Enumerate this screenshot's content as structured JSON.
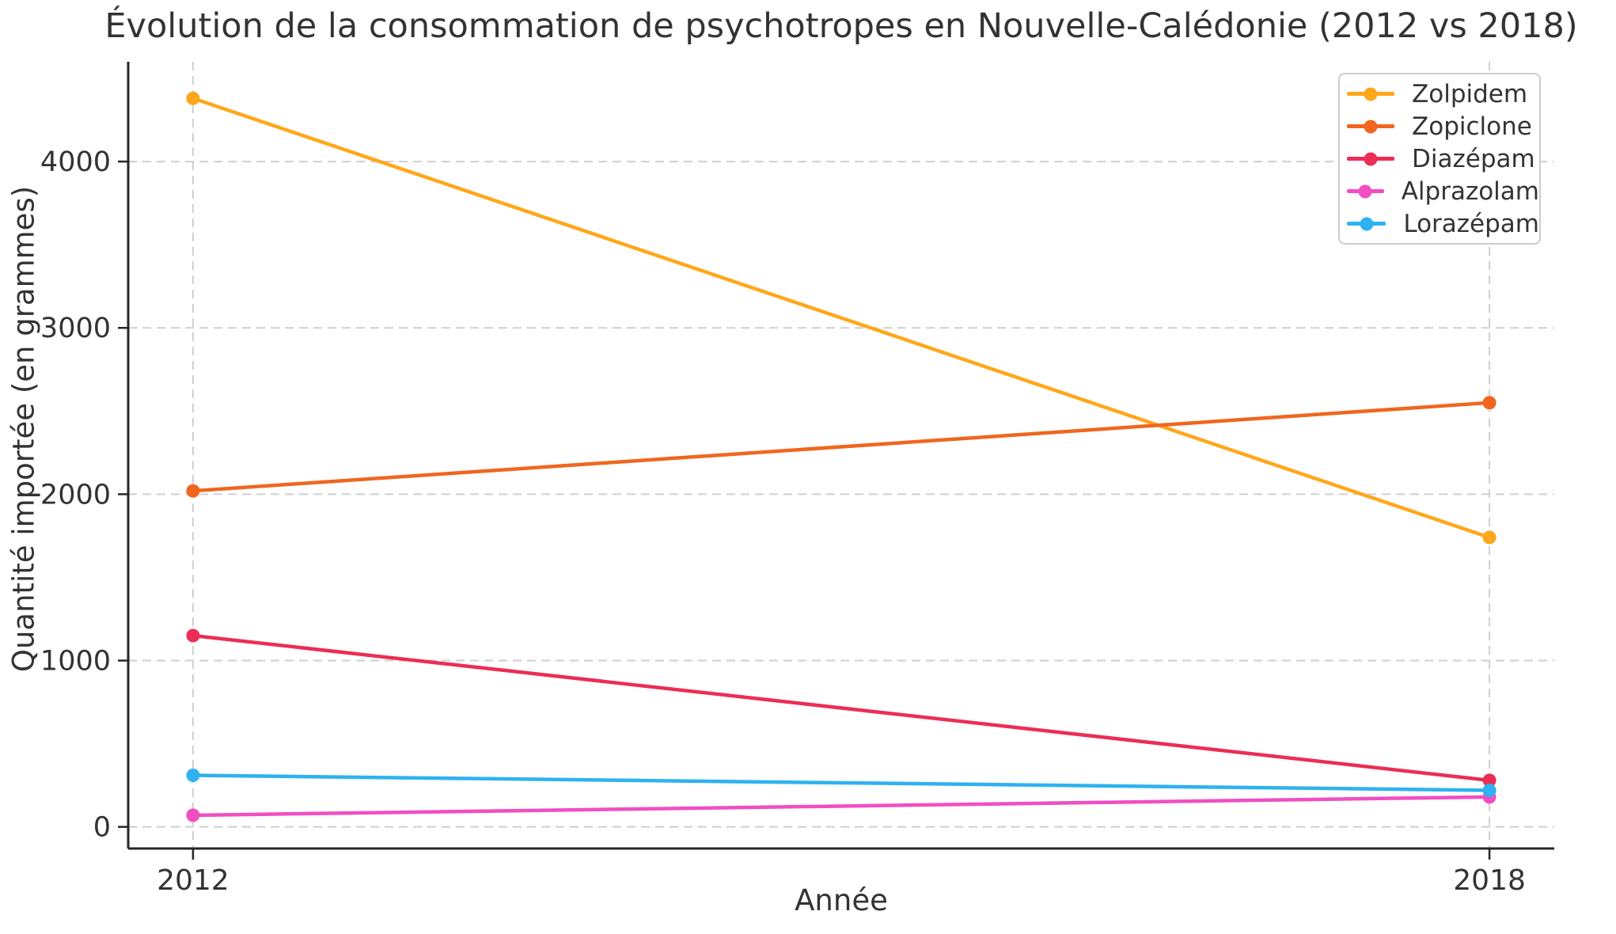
{
  "chart_data": {
    "type": "line",
    "title": "Évolution de la consommation de psychotropes en Nouvelle-Calédonie (2012 vs 2018)",
    "xlabel": "Année",
    "ylabel": "Quantité importée (en grammes)",
    "categories": [
      2012,
      2018
    ],
    "yticks": [
      0,
      1000,
      2000,
      3000,
      4000
    ],
    "xlim": [
      2011.7,
      2018.3
    ],
    "ylim": [
      -130,
      4600
    ],
    "grid": true,
    "grid_style": "dashed",
    "legend_position": "upper right",
    "series": [
      {
        "name": "Zolpidem",
        "color": "#FFA71A",
        "values": [
          4380,
          1740
        ]
      },
      {
        "name": "Zopiclone",
        "color": "#F0661E",
        "values": [
          2020,
          2550
        ]
      },
      {
        "name": "Diazépam",
        "color": "#EC2D55",
        "values": [
          1150,
          280
        ]
      },
      {
        "name": "Alprazolam",
        "color": "#F14EC3",
        "values": [
          70,
          180
        ]
      },
      {
        "name": "Lorazépam",
        "color": "#2EB2F0",
        "values": [
          310,
          220
        ]
      }
    ],
    "colors": {
      "grid": "#cfcfcf",
      "axis": "#262626",
      "text": "#333333"
    }
  }
}
